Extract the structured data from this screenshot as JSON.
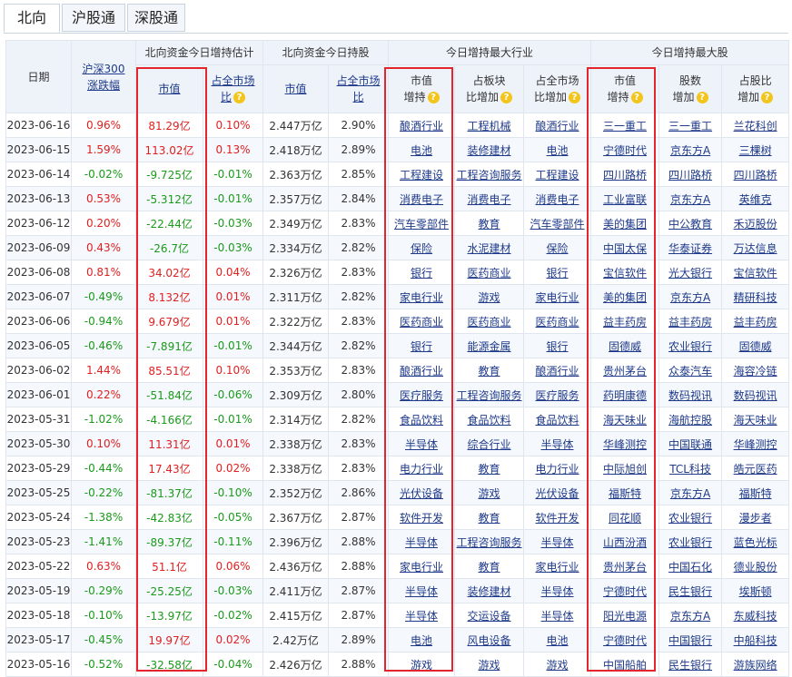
{
  "tabs": [
    "北向",
    "沪股通",
    "深股通"
  ],
  "header": {
    "date": "日期",
    "hs300": "沪深300\n涨跌幅",
    "group_est": "北向资金今日增持估计",
    "group_hold": "北向资金今日持股",
    "group_industry": "今日增持最大行业",
    "group_stock": "今日增持最大股",
    "mv": "市值",
    "pct_market": "占全市场\n比",
    "hold_mv": "市值",
    "hold_pct": "占全市场\n比",
    "ind_mv": "市值\n增持",
    "ind_sector": "占板块\n比增加",
    "ind_market": "占全市场\n比增加",
    "stk_mv": "市值\n增持",
    "stk_shares": "股数\n增加",
    "stk_ratio": "占股比\n增加",
    "help_icon": "?"
  },
  "colors": {
    "up": "#e02020",
    "down": "#1a9a1a",
    "highlight": "#e3262d",
    "link": "#1f3a8a"
  },
  "rows": [
    {
      "date": "2023-06-16",
      "hs300": "0.96%",
      "mv": "81.29亿",
      "pct": "0.10%",
      "hold": "2.447万亿",
      "hold_pct": "2.90%",
      "ind1": "酿酒行业",
      "ind2": "工程机械",
      "ind3": "酿酒行业",
      "s1": "三一重工",
      "s2": "三一重工",
      "s3": "兰花科创"
    },
    {
      "date": "2023-06-15",
      "hs300": "1.59%",
      "mv": "113.02亿",
      "pct": "0.13%",
      "hold": "2.418万亿",
      "hold_pct": "2.89%",
      "ind1": "电池",
      "ind2": "装修建材",
      "ind3": "电池",
      "s1": "宁德时代",
      "s2": "京东方A",
      "s3": "三棵树"
    },
    {
      "date": "2023-06-14",
      "hs300": "-0.02%",
      "mv": "-9.725亿",
      "pct": "-0.01%",
      "hold": "2.363万亿",
      "hold_pct": "2.85%",
      "ind1": "工程建设",
      "ind2": "工程咨询服务",
      "ind3": "工程建设",
      "s1": "四川路桥",
      "s2": "四川路桥",
      "s3": "四川路桥"
    },
    {
      "date": "2023-06-13",
      "hs300": "0.53%",
      "mv": "-5.312亿",
      "pct": "-0.01%",
      "hold": "2.357万亿",
      "hold_pct": "2.84%",
      "ind1": "消费电子",
      "ind2": "消费电子",
      "ind3": "消费电子",
      "s1": "工业富联",
      "s2": "京东方A",
      "s3": "英维克"
    },
    {
      "date": "2023-06-12",
      "hs300": "0.20%",
      "mv": "-22.44亿",
      "pct": "-0.03%",
      "hold": "2.349万亿",
      "hold_pct": "2.83%",
      "ind1": "汽车零部件",
      "ind2": "教育",
      "ind3": "汽车零部件",
      "s1": "美的集团",
      "s2": "中公教育",
      "s3": "禾迈股份"
    },
    {
      "date": "2023-06-09",
      "hs300": "0.43%",
      "mv": "-26.7亿",
      "pct": "-0.03%",
      "hold": "2.334万亿",
      "hold_pct": "2.82%",
      "ind1": "保险",
      "ind2": "水泥建材",
      "ind3": "保险",
      "s1": "中国太保",
      "s2": "华泰证券",
      "s3": "万达信息"
    },
    {
      "date": "2023-06-08",
      "hs300": "0.81%",
      "mv": "34.02亿",
      "pct": "0.04%",
      "hold": "2.326万亿",
      "hold_pct": "2.83%",
      "ind1": "银行",
      "ind2": "医药商业",
      "ind3": "银行",
      "s1": "宝信软件",
      "s2": "光大银行",
      "s3": "宝信软件"
    },
    {
      "date": "2023-06-07",
      "hs300": "-0.49%",
      "mv": "8.132亿",
      "pct": "0.01%",
      "hold": "2.311万亿",
      "hold_pct": "2.82%",
      "ind1": "家电行业",
      "ind2": "游戏",
      "ind3": "家电行业",
      "s1": "美的集团",
      "s2": "京东方A",
      "s3": "精研科技"
    },
    {
      "date": "2023-06-06",
      "hs300": "-0.94%",
      "mv": "9.679亿",
      "pct": "0.01%",
      "hold": "2.322万亿",
      "hold_pct": "2.83%",
      "ind1": "医药商业",
      "ind2": "医药商业",
      "ind3": "医药商业",
      "s1": "益丰药房",
      "s2": "益丰药房",
      "s3": "益丰药房"
    },
    {
      "date": "2023-06-05",
      "hs300": "-0.46%",
      "mv": "-7.891亿",
      "pct": "-0.01%",
      "hold": "2.344万亿",
      "hold_pct": "2.82%",
      "ind1": "银行",
      "ind2": "能源金属",
      "ind3": "银行",
      "s1": "固德威",
      "s2": "农业银行",
      "s3": "固德威"
    },
    {
      "date": "2023-06-02",
      "hs300": "1.44%",
      "mv": "85.51亿",
      "pct": "0.10%",
      "hold": "2.353万亿",
      "hold_pct": "2.83%",
      "ind1": "酿酒行业",
      "ind2": "教育",
      "ind3": "酿酒行业",
      "s1": "贵州茅台",
      "s2": "众泰汽车",
      "s3": "海容冷链"
    },
    {
      "date": "2023-06-01",
      "hs300": "0.22%",
      "mv": "-51.84亿",
      "pct": "-0.06%",
      "hold": "2.309万亿",
      "hold_pct": "2.80%",
      "ind1": "医疗服务",
      "ind2": "工程咨询服务",
      "ind3": "医疗服务",
      "s1": "药明康德",
      "s2": "数码视讯",
      "s3": "数码视讯"
    },
    {
      "date": "2023-05-31",
      "hs300": "-1.02%",
      "mv": "-4.166亿",
      "pct": "-0.01%",
      "hold": "2.314万亿",
      "hold_pct": "2.82%",
      "ind1": "食品饮料",
      "ind2": "食品饮料",
      "ind3": "食品饮料",
      "s1": "海天味业",
      "s2": "海航控股",
      "s3": "海天味业"
    },
    {
      "date": "2023-05-30",
      "hs300": "0.10%",
      "mv": "11.31亿",
      "pct": "0.01%",
      "hold": "2.338万亿",
      "hold_pct": "2.83%",
      "ind1": "半导体",
      "ind2": "综合行业",
      "ind3": "半导体",
      "s1": "华峰测控",
      "s2": "中国联通",
      "s3": "华峰测控"
    },
    {
      "date": "2023-05-29",
      "hs300": "-0.44%",
      "mv": "17.43亿",
      "pct": "0.02%",
      "hold": "2.338万亿",
      "hold_pct": "2.83%",
      "ind1": "电力行业",
      "ind2": "教育",
      "ind3": "电力行业",
      "s1": "中际旭创",
      "s2": "TCL科技",
      "s3": "皓元医药"
    },
    {
      "date": "2023-05-25",
      "hs300": "-0.22%",
      "mv": "-81.37亿",
      "pct": "-0.10%",
      "hold": "2.352万亿",
      "hold_pct": "2.86%",
      "ind1": "光伏设备",
      "ind2": "游戏",
      "ind3": "光伏设备",
      "s1": "福斯特",
      "s2": "京东方A",
      "s3": "福斯特"
    },
    {
      "date": "2023-05-24",
      "hs300": "-1.38%",
      "mv": "-42.83亿",
      "pct": "-0.05%",
      "hold": "2.367万亿",
      "hold_pct": "2.87%",
      "ind1": "软件开发",
      "ind2": "教育",
      "ind3": "软件开发",
      "s1": "同花顺",
      "s2": "农业银行",
      "s3": "漫步者"
    },
    {
      "date": "2023-05-23",
      "hs300": "-1.41%",
      "mv": "-89.37亿",
      "pct": "-0.11%",
      "hold": "2.396万亿",
      "hold_pct": "2.88%",
      "ind1": "半导体",
      "ind2": "工程咨询服务",
      "ind3": "半导体",
      "s1": "山西汾酒",
      "s2": "农业银行",
      "s3": "蓝色光标"
    },
    {
      "date": "2023-05-22",
      "hs300": "0.63%",
      "mv": "51.1亿",
      "pct": "0.06%",
      "hold": "2.436万亿",
      "hold_pct": "2.88%",
      "ind1": "家电行业",
      "ind2": "教育",
      "ind3": "家电行业",
      "s1": "贵州茅台",
      "s2": "中国石化",
      "s3": "德业股份"
    },
    {
      "date": "2023-05-19",
      "hs300": "-0.29%",
      "mv": "-25.25亿",
      "pct": "-0.03%",
      "hold": "2.411万亿",
      "hold_pct": "2.87%",
      "ind1": "半导体",
      "ind2": "装修建材",
      "ind3": "半导体",
      "s1": "宁德时代",
      "s2": "民生银行",
      "s3": "埃斯顿"
    },
    {
      "date": "2023-05-18",
      "hs300": "-0.10%",
      "mv": "-13.97亿",
      "pct": "-0.02%",
      "hold": "2.415万亿",
      "hold_pct": "2.87%",
      "ind1": "半导体",
      "ind2": "交运设备",
      "ind3": "半导体",
      "s1": "阳光电源",
      "s2": "京东方A",
      "s3": "东威科技"
    },
    {
      "date": "2023-05-17",
      "hs300": "-0.45%",
      "mv": "19.97亿",
      "pct": "0.02%",
      "hold": "2.42万亿",
      "hold_pct": "2.89%",
      "ind1": "电池",
      "ind2": "风电设备",
      "ind3": "电池",
      "s1": "宁德时代",
      "s2": "中国银行",
      "s3": "中船科技"
    },
    {
      "date": "2023-05-16",
      "hs300": "-0.52%",
      "mv": "-32.58亿",
      "pct": "-0.04%",
      "hold": "2.426万亿",
      "hold_pct": "2.88%",
      "ind1": "游戏",
      "ind2": "游戏",
      "ind3": "游戏",
      "s1": "中国船舶",
      "s2": "民生银行",
      "s3": "游族网络"
    }
  ]
}
